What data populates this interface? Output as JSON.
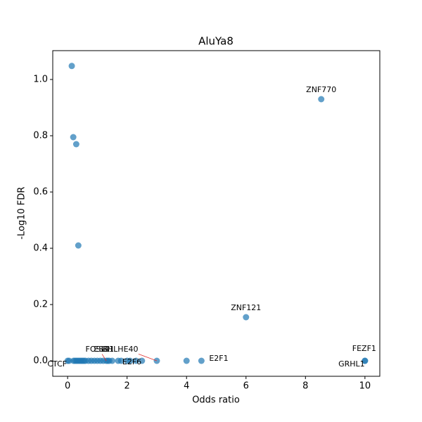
{
  "chart_data": {
    "type": "scatter",
    "title": "AluYa8",
    "x_label": "Odds ratio",
    "y_label": "-Log10 FDR",
    "color": "#1f77b4",
    "x": [
      0.14,
      0.19,
      0.29,
      0.36,
      8.53,
      6.0,
      0,
      0.05,
      0.2,
      0.25,
      0.3,
      0.35,
      0.4,
      0.45,
      0.5,
      0.55,
      0.6,
      0.7,
      0.8,
      0.9,
      1.0,
      1.1,
      1.2,
      1.3,
      1.35,
      1.4,
      1.5,
      1.7,
      1.8,
      2.0,
      2.1,
      2.3,
      2.5,
      3.0,
      4.0,
      4.5,
      10,
      10
    ],
    "values": [
      1.048,
      0.795,
      0.77,
      0.41,
      0.93,
      0.155,
      0,
      0,
      0,
      0,
      0,
      0,
      0,
      0,
      0,
      0,
      0,
      0,
      0,
      0,
      0,
      0,
      0,
      0,
      0,
      0,
      0,
      0,
      0,
      0,
      0,
      0,
      0,
      0,
      0,
      0,
      0,
      0
    ],
    "annotations": [
      {
        "text": "ZNF770",
        "x": 8.53,
        "y": 0.93
      },
      {
        "text": "ZNF121",
        "x": 6.0,
        "y": 0.155
      },
      {
        "text": "FOSL2",
        "x": 1.3,
        "y": 0
      },
      {
        "text": "ESR1",
        "x": 2.0,
        "y": 0
      },
      {
        "text": "BHLHE40",
        "x": 3.0,
        "y": 0
      },
      {
        "text": "E2F1",
        "x": 4.5,
        "y": 0
      },
      {
        "text": "FEZF1",
        "x": 10,
        "y": 0
      },
      {
        "text": "GRHL1",
        "x": 10,
        "y": 0
      },
      {
        "text": "CTCF",
        "x": 0.5,
        "y": 0
      },
      {
        "text": "E2F6",
        "x": 1.5,
        "y": 0
      }
    ],
    "xlim": [
      -0.5,
      10.5
    ],
    "xticks": [
      0,
      2,
      4,
      6,
      8,
      10
    ],
    "ylim": [
      -0.055,
      1.1025
    ],
    "yticks": [
      {
        "value": 0,
        "label": "0.0"
      },
      {
        "value": 0.2,
        "label": "0.2"
      },
      {
        "value": 0.4,
        "label": "0.4"
      },
      {
        "value": 0.6,
        "label": "0.6"
      },
      {
        "value": 0.8,
        "label": "0.8"
      },
      {
        "value": 1.0,
        "label": "1.0"
      }
    ]
  }
}
